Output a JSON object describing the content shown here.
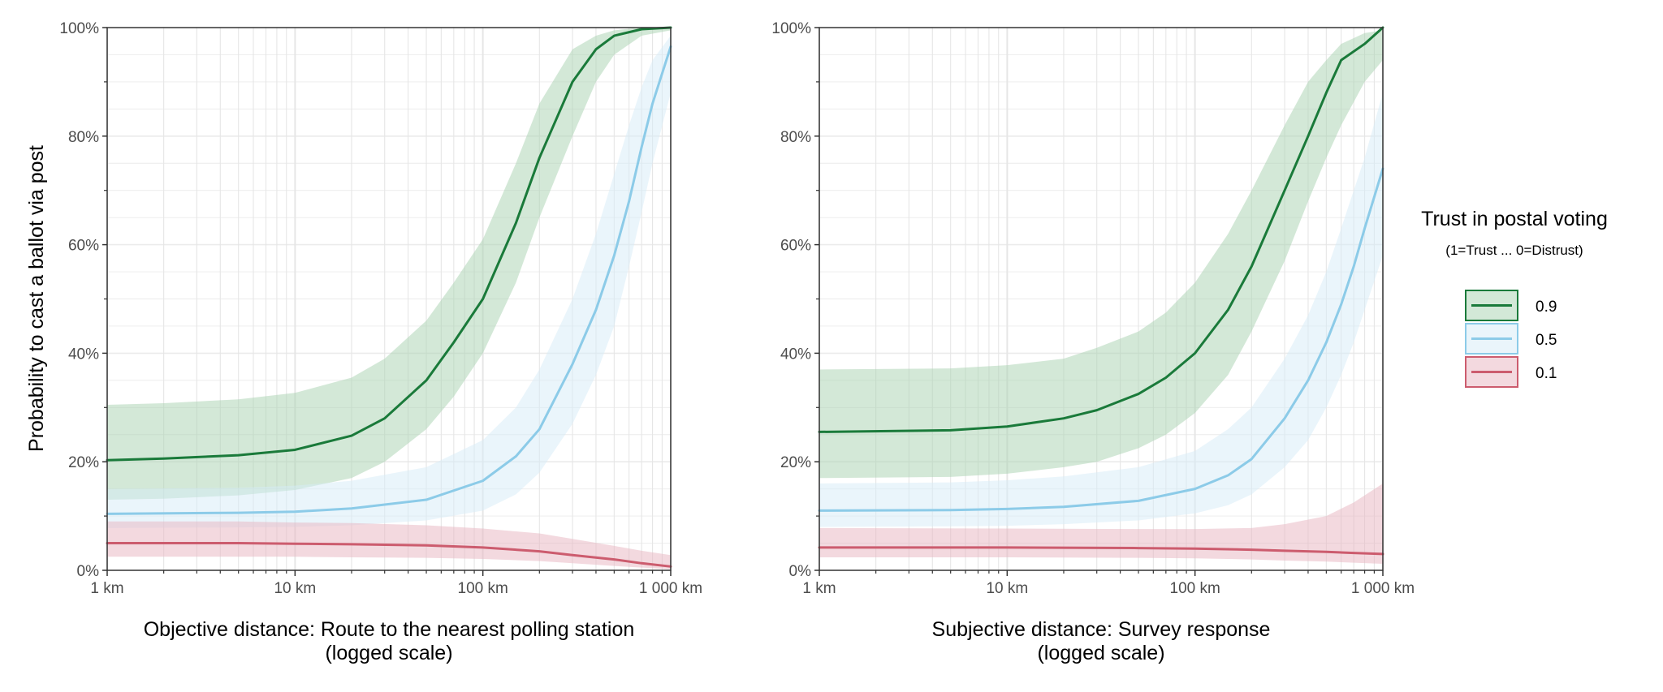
{
  "chart_data": {
    "type": "line",
    "y_axis_title": "Probability to cast a ballot via post",
    "ylim": [
      0,
      1
    ],
    "y_ticks": [
      {
        "value": 0,
        "label": "0%"
      },
      {
        "value": 0.2,
        "label": "20%"
      },
      {
        "value": 0.4,
        "label": "40%"
      },
      {
        "value": 0.6,
        "label": "60%"
      },
      {
        "value": 0.8,
        "label": "80%"
      },
      {
        "value": 1.0,
        "label": "100%"
      }
    ],
    "x_scale": "log10",
    "xlim_km": [
      1,
      1000
    ],
    "x_ticks": [
      {
        "value": 1,
        "label": "1 km"
      },
      {
        "value": 10,
        "label": "10 km"
      },
      {
        "value": 100,
        "label": "100 km"
      },
      {
        "value": 1000,
        "label": "1 000 km"
      }
    ],
    "grid": true,
    "legend": {
      "title": "Trust in postal voting",
      "subtitle": "(1=Trust ... 0=Distrust)",
      "placement": "right",
      "entries": [
        {
          "label": "0.9",
          "color": "#1a7a3a",
          "fill": "#a8d1b0"
        },
        {
          "label": "0.5",
          "color": "#8ccbe8",
          "fill": "#d6ebf8"
        },
        {
          "label": "0.1",
          "color": "#cc5c6e",
          "fill": "#e8b4bf"
        }
      ]
    },
    "panels": [
      {
        "x_axis_title": "Objective distance: Route to the nearest polling station",
        "x_axis_subtitle": "(logged scale)",
        "series": [
          {
            "name": "0.9",
            "color": "#1a7a3a",
            "fill": "#a8d1b0",
            "x": [
              1,
              2,
              5,
              10,
              20,
              30,
              50,
              70,
              100,
              150,
              200,
              300,
              400,
              500,
              700,
              1000
            ],
            "y": [
              0.203,
              0.206,
              0.212,
              0.222,
              0.248,
              0.28,
              0.35,
              0.42,
              0.5,
              0.64,
              0.76,
              0.9,
              0.96,
              0.985,
              0.997,
              1.0
            ],
            "lower": [
              0.13,
              0.132,
              0.138,
              0.148,
              0.17,
              0.2,
              0.26,
              0.32,
              0.4,
              0.53,
              0.65,
              0.8,
              0.9,
              0.95,
              0.985,
              0.995
            ],
            "upper": [
              0.305,
              0.308,
              0.315,
              0.327,
              0.355,
              0.39,
              0.46,
              0.53,
              0.61,
              0.75,
              0.86,
              0.96,
              0.985,
              0.995,
              1.0,
              1.0
            ]
          },
          {
            "name": "0.5",
            "color": "#8ccbe8",
            "fill": "#d6ebf8",
            "x": [
              1,
              5,
              10,
              20,
              50,
              100,
              150,
              200,
              300,
              400,
              500,
              600,
              700,
              800,
              1000
            ],
            "y": [
              0.104,
              0.106,
              0.108,
              0.114,
              0.13,
              0.165,
              0.21,
              0.26,
              0.38,
              0.48,
              0.58,
              0.68,
              0.78,
              0.86,
              0.965
            ],
            "lower": [
              0.078,
              0.079,
              0.08,
              0.083,
              0.092,
              0.11,
              0.14,
              0.18,
              0.27,
              0.36,
              0.45,
              0.56,
              0.66,
              0.75,
              0.88
            ],
            "upper": [
              0.15,
              0.152,
              0.156,
              0.165,
              0.19,
              0.24,
              0.3,
              0.37,
              0.5,
              0.62,
              0.73,
              0.82,
              0.89,
              0.94,
              0.985
            ]
          },
          {
            "name": "0.1",
            "color": "#cc5c6e",
            "fill": "#e8b4bf",
            "x": [
              1,
              5,
              10,
              20,
              50,
              100,
              200,
              300,
              500,
              700,
              1000
            ],
            "y": [
              0.05,
              0.05,
              0.049,
              0.048,
              0.046,
              0.042,
              0.035,
              0.028,
              0.02,
              0.013,
              0.007
            ],
            "lower": [
              0.025,
              0.025,
              0.025,
              0.024,
              0.023,
              0.021,
              0.017,
              0.013,
              0.008,
              0.005,
              0.002
            ],
            "upper": [
              0.09,
              0.09,
              0.088,
              0.087,
              0.083,
              0.077,
              0.068,
              0.058,
              0.045,
              0.036,
              0.028
            ]
          }
        ]
      },
      {
        "x_axis_title": "Subjective distance: Survey response",
        "x_axis_subtitle": "(logged scale)",
        "series": [
          {
            "name": "0.9",
            "color": "#1a7a3a",
            "fill": "#a8d1b0",
            "x": [
              1,
              5,
              10,
              20,
              30,
              50,
              70,
              100,
              150,
              200,
              300,
              400,
              500,
              600,
              800,
              1000
            ],
            "y": [
              0.255,
              0.258,
              0.265,
              0.28,
              0.295,
              0.325,
              0.355,
              0.4,
              0.48,
              0.56,
              0.7,
              0.8,
              0.88,
              0.94,
              0.97,
              1.0
            ],
            "lower": [
              0.17,
              0.172,
              0.178,
              0.19,
              0.2,
              0.225,
              0.25,
              0.29,
              0.36,
              0.44,
              0.57,
              0.68,
              0.76,
              0.82,
              0.9,
              0.94
            ],
            "upper": [
              0.37,
              0.372,
              0.378,
              0.39,
              0.41,
              0.44,
              0.475,
              0.53,
              0.62,
              0.7,
              0.82,
              0.9,
              0.94,
              0.97,
              0.99,
              0.995
            ]
          },
          {
            "name": "0.5",
            "color": "#8ccbe8",
            "fill": "#d6ebf8",
            "x": [
              1,
              5,
              10,
              20,
              50,
              100,
              150,
              200,
              300,
              400,
              500,
              600,
              700,
              800,
              1000
            ],
            "y": [
              0.11,
              0.111,
              0.113,
              0.117,
              0.128,
              0.15,
              0.175,
              0.205,
              0.28,
              0.35,
              0.42,
              0.49,
              0.56,
              0.63,
              0.74
            ],
            "lower": [
              0.08,
              0.081,
              0.082,
              0.085,
              0.092,
              0.105,
              0.12,
              0.14,
              0.19,
              0.24,
              0.3,
              0.36,
              0.42,
              0.48,
              0.58
            ],
            "upper": [
              0.16,
              0.162,
              0.166,
              0.173,
              0.19,
              0.22,
              0.26,
              0.3,
              0.39,
              0.47,
              0.55,
              0.63,
              0.7,
              0.76,
              0.88
            ]
          },
          {
            "name": "0.1",
            "color": "#cc5c6e",
            "fill": "#e8b4bf",
            "x": [
              1,
              10,
              50,
              100,
              200,
              300,
              500,
              700,
              1000
            ],
            "y": [
              0.042,
              0.042,
              0.041,
              0.04,
              0.038,
              0.036,
              0.034,
              0.032,
              0.03
            ],
            "lower": [
              0.024,
              0.024,
              0.023,
              0.022,
              0.02,
              0.018,
              0.016,
              0.014,
              0.012
            ],
            "upper": [
              0.078,
              0.077,
              0.076,
              0.076,
              0.078,
              0.085,
              0.1,
              0.125,
              0.16
            ]
          }
        ]
      }
    ]
  }
}
